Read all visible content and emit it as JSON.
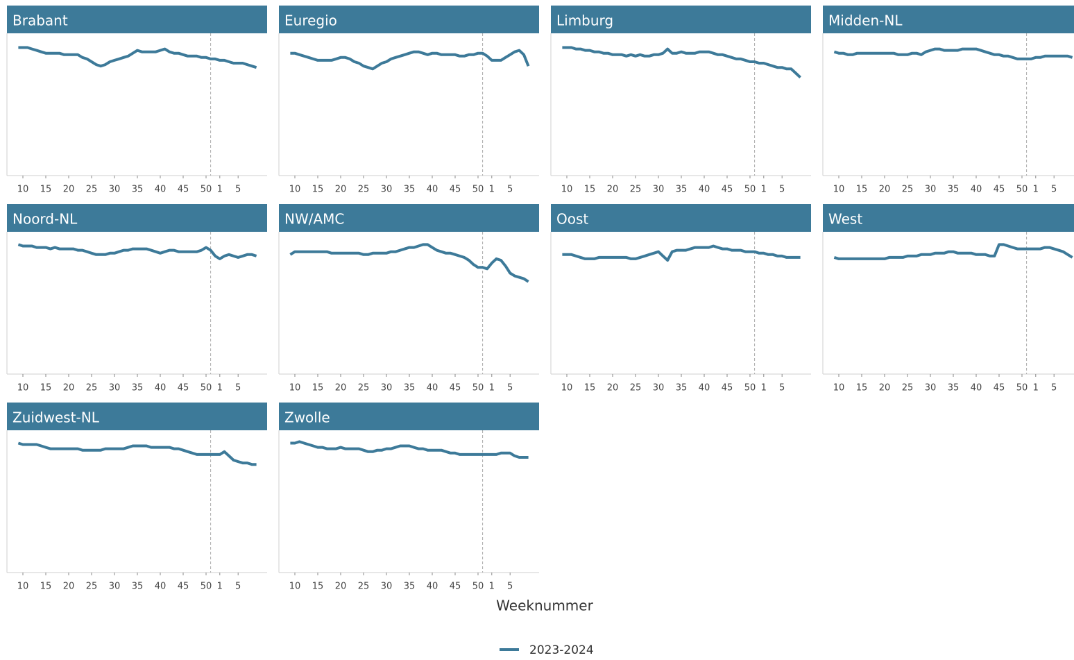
{
  "chart_data": [
    {
      "type": "line",
      "title": "Brabant",
      "ylim": [
        0,
        100
      ],
      "categories": [
        null,
        10,
        null,
        null,
        null,
        null,
        15,
        null,
        null,
        null,
        null,
        20,
        null,
        null,
        null,
        null,
        25,
        null,
        null,
        null,
        null,
        30,
        null,
        null,
        null,
        null,
        35,
        null,
        null,
        null,
        null,
        40,
        null,
        null,
        null,
        null,
        45,
        null,
        null,
        null,
        null,
        50,
        null,
        null,
        1,
        null,
        null,
        null,
        5,
        null,
        null,
        null,
        null
      ],
      "values": [
        90,
        90,
        90,
        89,
        88,
        87,
        86,
        86,
        86,
        86,
        85,
        85,
        85,
        85,
        83,
        82,
        80,
        78,
        77,
        78,
        80,
        81,
        82,
        83,
        84,
        86,
        88,
        87,
        87,
        87,
        87,
        88,
        89,
        87,
        86,
        86,
        85,
        84,
        84,
        84,
        83,
        83,
        82,
        82,
        81,
        81,
        80,
        79,
        79,
        79,
        78,
        77,
        76
      ]
    },
    {
      "type": "line",
      "title": "Euregio",
      "ylim": [
        0,
        100
      ],
      "categories": [
        null,
        10,
        null,
        null,
        null,
        null,
        15,
        null,
        null,
        null,
        null,
        20,
        null,
        null,
        null,
        null,
        25,
        null,
        null,
        null,
        null,
        30,
        null,
        null,
        null,
        null,
        35,
        null,
        null,
        null,
        null,
        40,
        null,
        null,
        null,
        null,
        45,
        null,
        null,
        null,
        null,
        50,
        null,
        null,
        1,
        null,
        null,
        null,
        5,
        null,
        null,
        null,
        null
      ],
      "values": [
        86,
        86,
        85,
        84,
        83,
        82,
        81,
        81,
        81,
        81,
        82,
        83,
        83,
        82,
        80,
        79,
        77,
        76,
        75,
        77,
        79,
        80,
        82,
        83,
        84,
        85,
        86,
        87,
        87,
        86,
        85,
        86,
        86,
        85,
        85,
        85,
        85,
        84,
        84,
        85,
        85,
        86,
        86,
        84,
        81,
        81,
        81,
        83,
        85,
        87,
        88,
        85,
        77
      ]
    },
    {
      "type": "line",
      "title": "Limburg",
      "ylim": [
        0,
        100
      ],
      "categories": [
        null,
        10,
        null,
        null,
        null,
        null,
        15,
        null,
        null,
        null,
        null,
        20,
        null,
        null,
        null,
        null,
        25,
        null,
        null,
        null,
        null,
        30,
        null,
        null,
        null,
        null,
        35,
        null,
        null,
        null,
        null,
        40,
        null,
        null,
        null,
        null,
        45,
        null,
        null,
        null,
        null,
        50,
        null,
        null,
        1,
        null,
        null,
        null,
        5,
        null,
        null,
        null,
        null
      ],
      "values": [
        90,
        90,
        90,
        89,
        89,
        88,
        88,
        87,
        87,
        86,
        86,
        85,
        85,
        85,
        84,
        85,
        84,
        85,
        84,
        84,
        85,
        85,
        86,
        89,
        86,
        86,
        87,
        86,
        86,
        86,
        87,
        87,
        87,
        86,
        85,
        85,
        84,
        83,
        82,
        82,
        81,
        80,
        80,
        79,
        79,
        78,
        77,
        76,
        76,
        75,
        75,
        72,
        69
      ]
    },
    {
      "type": "line",
      "title": "Midden-NL",
      "ylim": [
        0,
        100
      ],
      "categories": [
        null,
        10,
        null,
        null,
        null,
        null,
        15,
        null,
        null,
        null,
        null,
        20,
        null,
        null,
        null,
        null,
        25,
        null,
        null,
        null,
        null,
        30,
        null,
        null,
        null,
        null,
        35,
        null,
        null,
        null,
        null,
        40,
        null,
        null,
        null,
        null,
        45,
        null,
        null,
        null,
        null,
        50,
        null,
        null,
        1,
        null,
        null,
        null,
        5,
        null,
        null,
        null,
        null
      ],
      "values": [
        87,
        86,
        86,
        85,
        85,
        86,
        86,
        86,
        86,
        86,
        86,
        86,
        86,
        86,
        85,
        85,
        85,
        86,
        86,
        85,
        87,
        88,
        89,
        89,
        88,
        88,
        88,
        88,
        89,
        89,
        89,
        89,
        88,
        87,
        86,
        85,
        85,
        84,
        84,
        83,
        82,
        82,
        82,
        82,
        83,
        83,
        84,
        84,
        84,
        84,
        84,
        84,
        83
      ]
    },
    {
      "type": "line",
      "title": "Noord-NL",
      "ylim": [
        0,
        100
      ],
      "categories": [
        null,
        10,
        null,
        null,
        null,
        null,
        15,
        null,
        null,
        null,
        null,
        20,
        null,
        null,
        null,
        null,
        25,
        null,
        null,
        null,
        null,
        30,
        null,
        null,
        null,
        null,
        35,
        null,
        null,
        null,
        null,
        40,
        null,
        null,
        null,
        null,
        45,
        null,
        null,
        null,
        null,
        50,
        null,
        null,
        1,
        null,
        null,
        null,
        5,
        null,
        null,
        null,
        null
      ],
      "values": [
        91,
        90,
        90,
        90,
        89,
        89,
        89,
        88,
        89,
        88,
        88,
        88,
        88,
        87,
        87,
        86,
        85,
        84,
        84,
        84,
        85,
        85,
        86,
        87,
        87,
        88,
        88,
        88,
        88,
        87,
        86,
        85,
        86,
        87,
        87,
        86,
        86,
        86,
        86,
        86,
        87,
        89,
        87,
        83,
        81,
        83,
        84,
        83,
        82,
        83,
        84,
        84,
        83
      ]
    },
    {
      "type": "line",
      "title": "NW/AMC",
      "ylim": [
        0,
        100
      ],
      "categories": [
        null,
        10,
        null,
        null,
        null,
        null,
        15,
        null,
        null,
        null,
        null,
        20,
        null,
        null,
        null,
        null,
        25,
        null,
        null,
        null,
        null,
        30,
        null,
        null,
        null,
        null,
        35,
        null,
        null,
        null,
        null,
        40,
        null,
        null,
        null,
        null,
        45,
        null,
        null,
        null,
        null,
        50,
        null,
        null,
        1,
        null,
        null,
        null,
        5,
        null,
        null,
        null,
        null
      ],
      "values": [
        84,
        86,
        86,
        86,
        86,
        86,
        86,
        86,
        86,
        85,
        85,
        85,
        85,
        85,
        85,
        85,
        84,
        84,
        85,
        85,
        85,
        85,
        86,
        86,
        87,
        88,
        89,
        89,
        90,
        91,
        91,
        89,
        87,
        86,
        85,
        85,
        84,
        83,
        82,
        80,
        77,
        75,
        75,
        74,
        78,
        81,
        80,
        76,
        71,
        69,
        68,
        67,
        65
      ]
    },
    {
      "type": "line",
      "title": "Oost",
      "ylim": [
        0,
        100
      ],
      "categories": [
        null,
        10,
        null,
        null,
        null,
        null,
        15,
        null,
        null,
        null,
        null,
        20,
        null,
        null,
        null,
        null,
        25,
        null,
        null,
        null,
        null,
        30,
        null,
        null,
        null,
        null,
        35,
        null,
        null,
        null,
        null,
        40,
        null,
        null,
        null,
        null,
        45,
        null,
        null,
        null,
        null,
        50,
        null,
        null,
        1,
        null,
        null,
        null,
        5,
        null,
        null,
        null,
        null
      ],
      "values": [
        84,
        84,
        84,
        83,
        82,
        81,
        81,
        81,
        82,
        82,
        82,
        82,
        82,
        82,
        82,
        81,
        81,
        82,
        83,
        84,
        85,
        86,
        83,
        80,
        86,
        87,
        87,
        87,
        88,
        89,
        89,
        89,
        89,
        90,
        89,
        88,
        88,
        87,
        87,
        87,
        86,
        86,
        86,
        85,
        85,
        84,
        84,
        83,
        83,
        82,
        82,
        82,
        82
      ]
    },
    {
      "type": "line",
      "title": "West",
      "ylim": [
        0,
        100
      ],
      "categories": [
        null,
        10,
        null,
        null,
        null,
        null,
        15,
        null,
        null,
        null,
        null,
        20,
        null,
        null,
        null,
        null,
        25,
        null,
        null,
        null,
        null,
        30,
        null,
        null,
        null,
        null,
        35,
        null,
        null,
        null,
        null,
        40,
        null,
        null,
        null,
        null,
        45,
        null,
        null,
        null,
        null,
        50,
        null,
        null,
        1,
        null,
        null,
        null,
        5,
        null,
        null,
        null,
        null
      ],
      "values": [
        82,
        81,
        81,
        81,
        81,
        81,
        81,
        81,
        81,
        81,
        81,
        81,
        82,
        82,
        82,
        82,
        83,
        83,
        83,
        84,
        84,
        84,
        85,
        85,
        85,
        86,
        86,
        85,
        85,
        85,
        85,
        84,
        84,
        84,
        83,
        83,
        91,
        91,
        90,
        89,
        88,
        88,
        88,
        88,
        88,
        88,
        89,
        89,
        88,
        87,
        86,
        84,
        82
      ]
    },
    {
      "type": "line",
      "title": "Zuidwest-NL",
      "ylim": [
        0,
        100
      ],
      "categories": [
        null,
        10,
        null,
        null,
        null,
        null,
        15,
        null,
        null,
        null,
        null,
        20,
        null,
        null,
        null,
        null,
        25,
        null,
        null,
        null,
        null,
        30,
        null,
        null,
        null,
        null,
        35,
        null,
        null,
        null,
        null,
        40,
        null,
        null,
        null,
        null,
        45,
        null,
        null,
        null,
        null,
        50,
        null,
        null,
        1,
        null,
        null,
        null,
        5,
        null,
        null,
        null,
        null
      ],
      "values": [
        91,
        90,
        90,
        90,
        90,
        89,
        88,
        87,
        87,
        87,
        87,
        87,
        87,
        87,
        86,
        86,
        86,
        86,
        86,
        87,
        87,
        87,
        87,
        87,
        88,
        89,
        89,
        89,
        89,
        88,
        88,
        88,
        88,
        88,
        87,
        87,
        86,
        85,
        84,
        83,
        83,
        83,
        83,
        83,
        83,
        85,
        82,
        79,
        78,
        77,
        77,
        76,
        76
      ]
    },
    {
      "type": "line",
      "title": "Zwolle",
      "ylim": [
        0,
        100
      ],
      "categories": [
        null,
        10,
        null,
        null,
        null,
        null,
        15,
        null,
        null,
        null,
        null,
        20,
        null,
        null,
        null,
        null,
        25,
        null,
        null,
        null,
        null,
        30,
        null,
        null,
        null,
        null,
        35,
        null,
        null,
        null,
        null,
        40,
        null,
        null,
        null,
        null,
        45,
        null,
        null,
        null,
        null,
        50,
        null,
        null,
        1,
        null,
        null,
        null,
        5,
        null,
        null,
        null,
        null
      ],
      "values": [
        91,
        91,
        92,
        91,
        90,
        89,
        88,
        88,
        87,
        87,
        87,
        88,
        87,
        87,
        87,
        87,
        86,
        85,
        85,
        86,
        86,
        87,
        87,
        88,
        89,
        89,
        89,
        88,
        87,
        87,
        86,
        86,
        86,
        86,
        85,
        84,
        84,
        83,
        83,
        83,
        83,
        83,
        83,
        83,
        83,
        83,
        84,
        84,
        84,
        82,
        81,
        81,
        81
      ]
    }
  ],
  "x_label": "Weeknummer",
  "legend": {
    "name": "2023-2024",
    "color": "#3d7a99"
  }
}
